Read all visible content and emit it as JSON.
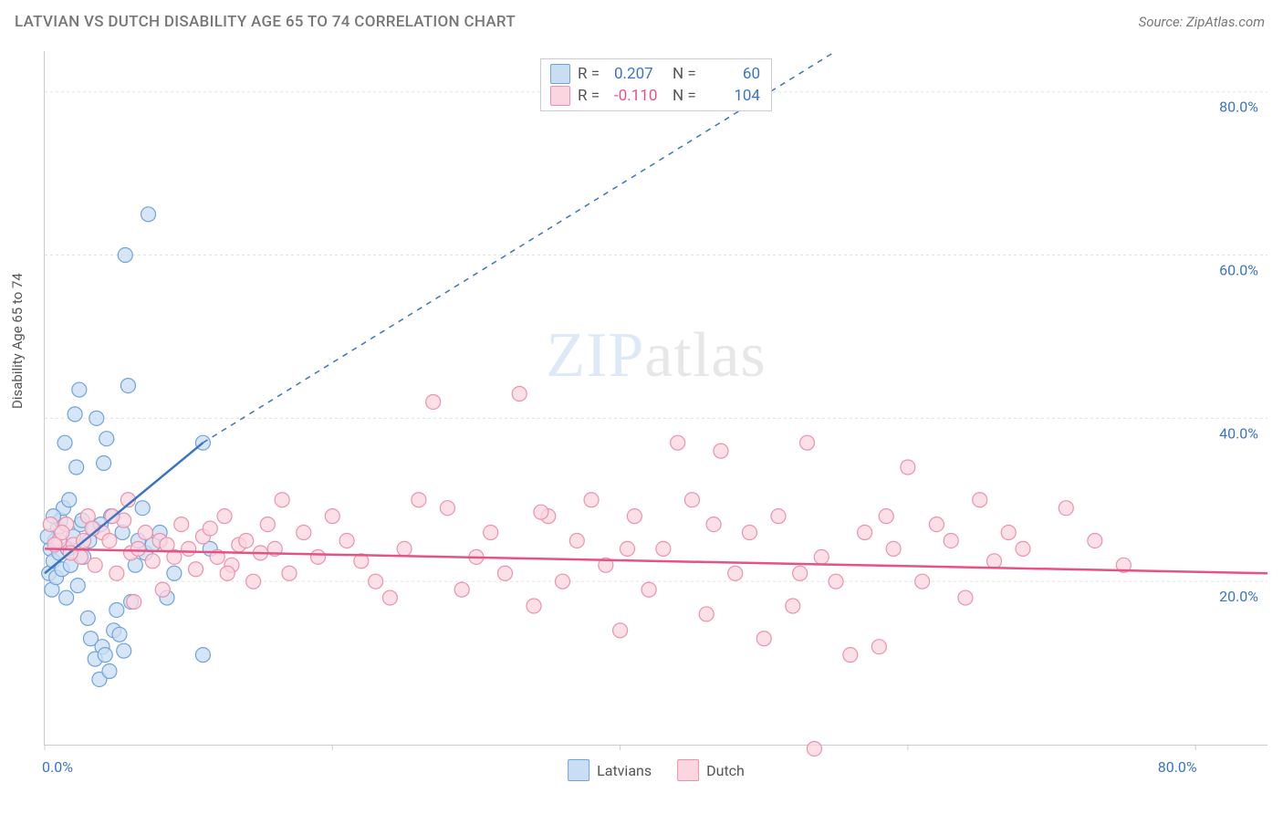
{
  "header": {
    "title": "LATVIAN VS DUTCH DISABILITY AGE 65 TO 74 CORRELATION CHART",
    "source_prefix": "Source: ",
    "source_name": "ZipAtlas.com"
  },
  "y_axis_label": "Disability Age 65 to 74",
  "watermark": {
    "part1": "ZIP",
    "part2": "atlas"
  },
  "chart": {
    "type": "scatter",
    "xlim": [
      0,
      85
    ],
    "ylim": [
      0,
      85
    ],
    "x_ticks": [
      0,
      20,
      40,
      60,
      80
    ],
    "y_ticks": [
      20,
      40,
      60,
      80
    ],
    "x_tick_labels": [
      "0.0%",
      "",
      "",
      "",
      "80.0%"
    ],
    "y_tick_labels": [
      "20.0%",
      "40.0%",
      "60.0%",
      "80.0%"
    ],
    "grid_color": "#e2e2e2",
    "background_color": "#ffffff",
    "axis_color": "#cccccc",
    "tick_label_color": "#3b74c4",
    "marker_radius": 8,
    "marker_stroke_width": 1.2,
    "trend_line_width": 2.5,
    "trend_dash": "6 6",
    "series": [
      {
        "name": "Latvians",
        "legend_label": "Latvians",
        "fill": "#c9ddf3",
        "stroke": "#6fa3dc",
        "trend_color": "#3b74c4",
        "R": "0.207",
        "N": "60",
        "trend_solid": {
          "x1": 0,
          "y1": 21,
          "x2": 11,
          "y2": 37
        },
        "trend_dash_line": {
          "x1": 11,
          "y1": 37,
          "x2": 55,
          "y2": 85
        },
        "points": [
          [
            0.3,
            21
          ],
          [
            0.4,
            24
          ],
          [
            0.5,
            19
          ],
          [
            0.6,
            22.5
          ],
          [
            0.7,
            25
          ],
          [
            0.8,
            20.5
          ],
          [
            0.9,
            26.5
          ],
          [
            1,
            23.5
          ],
          [
            1.1,
            27.5
          ],
          [
            1.2,
            21.5
          ],
          [
            1.3,
            29
          ],
          [
            1.5,
            18
          ],
          [
            1.6,
            24
          ],
          [
            1.8,
            22
          ],
          [
            2,
            25.5
          ],
          [
            2.2,
            34
          ],
          [
            2.3,
            19.5
          ],
          [
            2.5,
            27
          ],
          [
            2.7,
            23
          ],
          [
            3,
            15.5
          ],
          [
            3.2,
            13
          ],
          [
            3.5,
            10.5
          ],
          [
            3.8,
            8
          ],
          [
            4,
            12
          ],
          [
            4.2,
            11
          ],
          [
            4.5,
            9
          ],
          [
            4.8,
            14
          ],
          [
            5,
            16.5
          ],
          [
            5.2,
            13.5
          ],
          [
            5.5,
            11.5
          ],
          [
            1.4,
            37
          ],
          [
            2.1,
            40.5
          ],
          [
            2.4,
            43.5
          ],
          [
            5.8,
            44
          ],
          [
            3.6,
            40
          ],
          [
            4.3,
            37.5
          ],
          [
            4.6,
            28
          ],
          [
            5.4,
            26
          ],
          [
            6,
            17.5
          ],
          [
            6.3,
            22
          ],
          [
            6.5,
            25
          ],
          [
            7,
            23.5
          ],
          [
            1.7,
            30
          ],
          [
            6.8,
            29
          ],
          [
            7.5,
            24.5
          ],
          [
            8,
            26
          ],
          [
            4.1,
            34.5
          ],
          [
            7.2,
            65
          ],
          [
            5.6,
            60
          ],
          [
            2.6,
            27.5
          ],
          [
            11,
            37
          ],
          [
            11,
            11
          ],
          [
            11.5,
            24
          ],
          [
            8.5,
            18
          ],
          [
            9,
            21
          ],
          [
            3.1,
            25
          ],
          [
            3.4,
            26.5
          ],
          [
            3.9,
            27
          ],
          [
            0.2,
            25.5
          ],
          [
            0.6,
            28
          ]
        ]
      },
      {
        "name": "Dutch",
        "legend_label": "Dutch",
        "fill": "#fbd5e0",
        "stroke": "#ec91ab",
        "trend_color": "#e55384",
        "R": "-0.110",
        "N": "104",
        "trend_solid": {
          "x1": 0,
          "y1": 24,
          "x2": 85,
          "y2": 21
        },
        "trend_dash_line": null,
        "points": [
          [
            1,
            25
          ],
          [
            1.5,
            27
          ],
          [
            2,
            24.5
          ],
          [
            2.5,
            23
          ],
          [
            3,
            28
          ],
          [
            3.5,
            22
          ],
          [
            4,
            26
          ],
          [
            4.5,
            25
          ],
          [
            5,
            21
          ],
          [
            5.5,
            27.5
          ],
          [
            6,
            23.5
          ],
          [
            6.5,
            24
          ],
          [
            7,
            26
          ],
          [
            7.5,
            22.5
          ],
          [
            8,
            25
          ],
          [
            8.5,
            24.5
          ],
          [
            9,
            23
          ],
          [
            9.5,
            27
          ],
          [
            10,
            24
          ],
          [
            10.5,
            21.5
          ],
          [
            11,
            25.5
          ],
          [
            11.5,
            26.5
          ],
          [
            12,
            23
          ],
          [
            12.5,
            28
          ],
          [
            13,
            22
          ],
          [
            13.5,
            24.5
          ],
          [
            14,
            25
          ],
          [
            14.5,
            20
          ],
          [
            15,
            23.5
          ],
          [
            15.5,
            27
          ],
          [
            16,
            24
          ],
          [
            17,
            21
          ],
          [
            18,
            26
          ],
          [
            19,
            23
          ],
          [
            20,
            28
          ],
          [
            21,
            25
          ],
          [
            22,
            22.5
          ],
          [
            23,
            20
          ],
          [
            24,
            18
          ],
          [
            25,
            24
          ],
          [
            26,
            30
          ],
          [
            27,
            42
          ],
          [
            28,
            29
          ],
          [
            29,
            19
          ],
          [
            30,
            23
          ],
          [
            31,
            26
          ],
          [
            32,
            21
          ],
          [
            33,
            43
          ],
          [
            34,
            17
          ],
          [
            35,
            28
          ],
          [
            36,
            20
          ],
          [
            37,
            25
          ],
          [
            38,
            30
          ],
          [
            39,
            22
          ],
          [
            40,
            14
          ],
          [
            41,
            28
          ],
          [
            42,
            19
          ],
          [
            43,
            24
          ],
          [
            44,
            37
          ],
          [
            45,
            30
          ],
          [
            46,
            16
          ],
          [
            47,
            36
          ],
          [
            48,
            21
          ],
          [
            49,
            26
          ],
          [
            50,
            13
          ],
          [
            51,
            28
          ],
          [
            52,
            17
          ],
          [
            53,
            37
          ],
          [
            54,
            23
          ],
          [
            55,
            20
          ],
          [
            56,
            11
          ],
          [
            57,
            26
          ],
          [
            58,
            12
          ],
          [
            59,
            24
          ],
          [
            60,
            34
          ],
          [
            61,
            20
          ],
          [
            62,
            27
          ],
          [
            63,
            25
          ],
          [
            64,
            18
          ],
          [
            65,
            30
          ],
          [
            66,
            22.5
          ],
          [
            67,
            26
          ],
          [
            68,
            24
          ],
          [
            71,
            29
          ],
          [
            73,
            25
          ],
          [
            75,
            22
          ],
          [
            16.5,
            30
          ],
          [
            34.5,
            28.5
          ],
          [
            40.5,
            24
          ],
          [
            46.5,
            27
          ],
          [
            52.5,
            21
          ],
          [
            58.5,
            28
          ],
          [
            8.2,
            19
          ],
          [
            12.7,
            21
          ],
          [
            53.5,
            -0.5
          ],
          [
            6.2,
            17.5
          ],
          [
            5.8,
            30
          ],
          [
            4.7,
            28
          ],
          [
            3.3,
            26.5
          ],
          [
            2.7,
            25
          ],
          [
            1.8,
            23.5
          ],
          [
            1.2,
            26
          ],
          [
            0.7,
            24.5
          ],
          [
            0.4,
            27
          ]
        ]
      }
    ]
  },
  "stats_box": {
    "rows": [
      {
        "swatch_fill": "#c9ddf3",
        "swatch_stroke": "#6fa3dc",
        "R_label": "R =",
        "R_val": "0.207",
        "R_color": "#3b74c4",
        "N_label": "N =",
        "N_val": "60",
        "N_color": "#3b74c4"
      },
      {
        "swatch_fill": "#fbd5e0",
        "swatch_stroke": "#ec91ab",
        "R_label": "R =",
        "R_val": "-0.110",
        "R_color": "#e55384",
        "N_label": "N =",
        "N_val": "104",
        "N_color": "#3b74c4"
      }
    ]
  },
  "bottom_legend": [
    {
      "label": "Latvians",
      "fill": "#c9ddf3",
      "stroke": "#6fa3dc"
    },
    {
      "label": "Dutch",
      "fill": "#fbd5e0",
      "stroke": "#ec91ab"
    }
  ]
}
